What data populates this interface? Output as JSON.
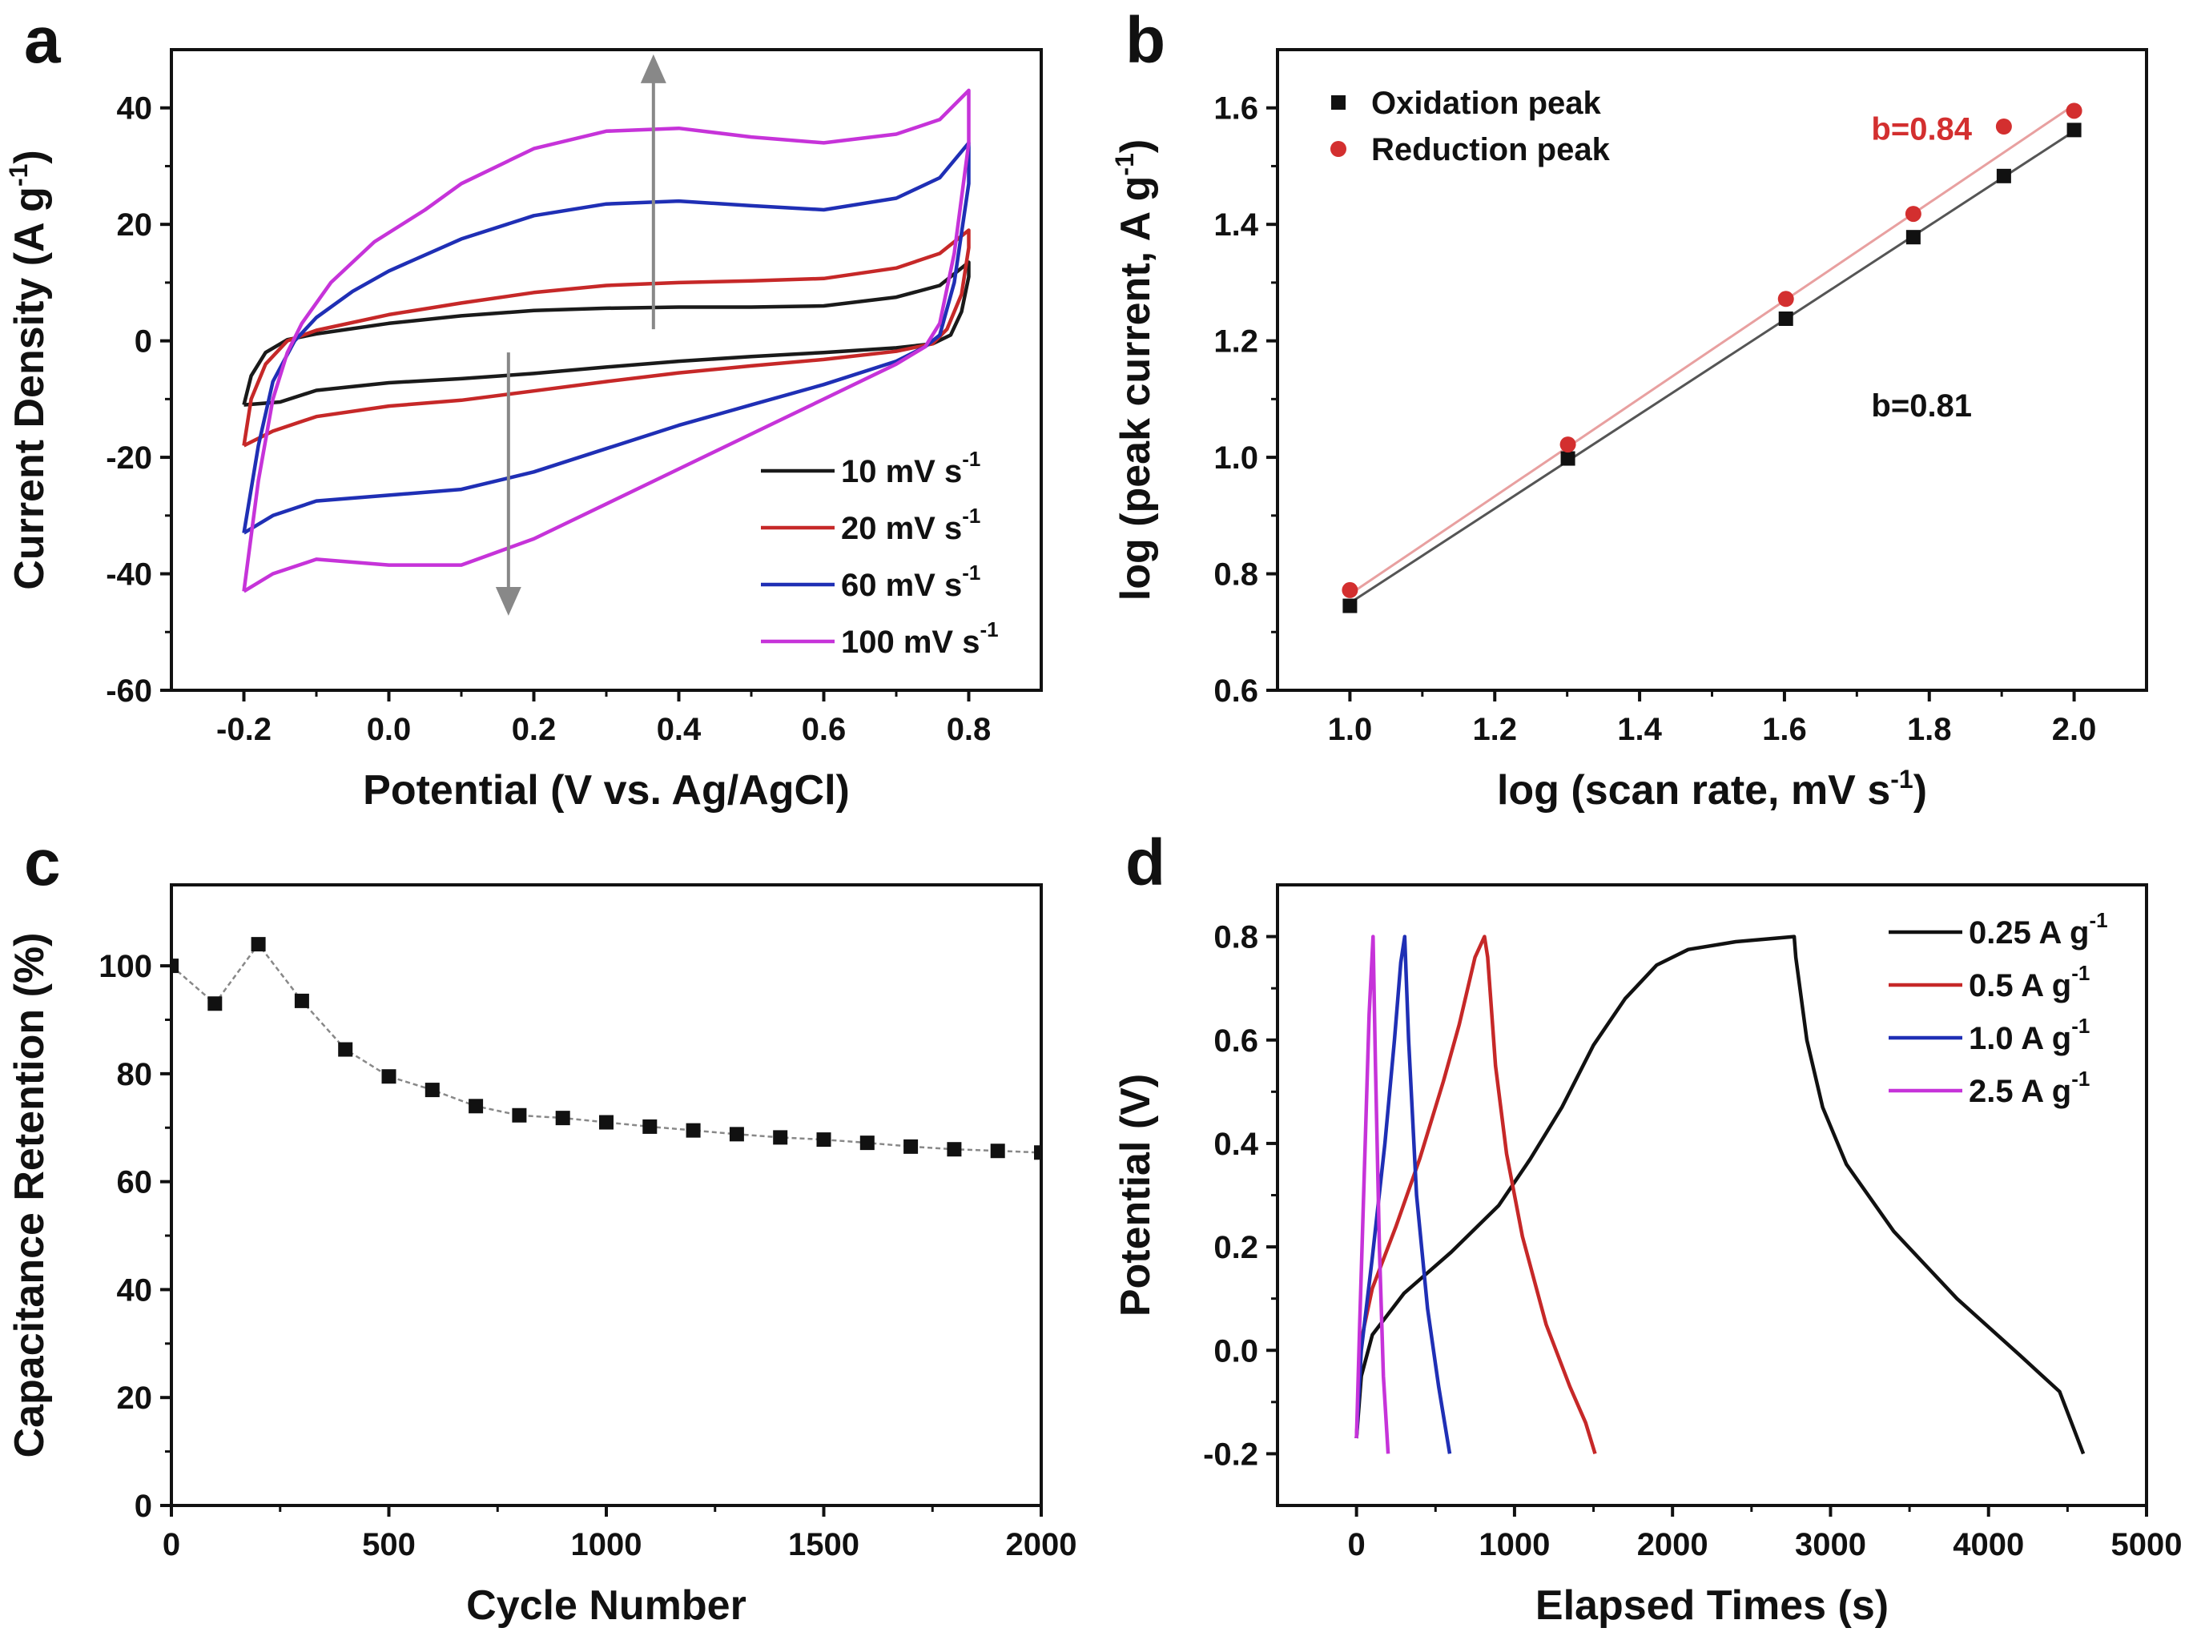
{
  "chart_data": [
    {
      "panel": "a",
      "type": "line",
      "title": "",
      "xlabel": "Potential (V vs. Ag/AgCl)",
      "ylabel": "Current Density (A g",
      "ylabel_sup": "-1",
      "ylabel_close": ")",
      "xlim": [
        -0.3,
        0.9
      ],
      "ylim": [
        -60,
        50
      ],
      "xticks": [
        -0.2,
        0.0,
        0.2,
        0.4,
        0.6,
        0.8
      ],
      "xtick_labels": [
        "-0.2",
        "0.0",
        "0.2",
        "0.4",
        "0.6",
        "0.8"
      ],
      "yticks": [
        -60,
        -40,
        -20,
        0,
        20,
        40
      ],
      "ytick_labels": [
        "-60",
        "-40",
        "-20",
        "0",
        "20",
        "40"
      ],
      "legend_position": "bottom-right",
      "arrows": [
        {
          "x": 0.365,
          "y_from": 2,
          "y_to": 47
        },
        {
          "x": 0.165,
          "y_from": -2,
          "y_to": -45
        }
      ],
      "series": [
        {
          "name": "10 mV s",
          "sup": "-1",
          "color": "#1a1a1a",
          "points": [
            [
              -0.2,
              -11
            ],
            [
              -0.19,
              -6
            ],
            [
              -0.17,
              -2
            ],
            [
              -0.14,
              0.2
            ],
            [
              -0.1,
              1.2
            ],
            [
              0.0,
              3
            ],
            [
              0.1,
              4.3
            ],
            [
              0.2,
              5.2
            ],
            [
              0.3,
              5.6
            ],
            [
              0.4,
              5.8
            ],
            [
              0.5,
              5.8
            ],
            [
              0.6,
              6
            ],
            [
              0.7,
              7.5
            ],
            [
              0.76,
              9.5
            ],
            [
              0.8,
              13.5
            ],
            [
              0.8,
              11
            ],
            [
              0.79,
              5
            ],
            [
              0.775,
              1
            ],
            [
              0.75,
              -0.5
            ],
            [
              0.7,
              -1.2
            ],
            [
              0.6,
              -2
            ],
            [
              0.5,
              -2.7
            ],
            [
              0.4,
              -3.5
            ],
            [
              0.3,
              -4.5
            ],
            [
              0.2,
              -5.6
            ],
            [
              0.1,
              -6.5
            ],
            [
              0.0,
              -7.2
            ],
            [
              -0.1,
              -8.5
            ],
            [
              -0.15,
              -10.5
            ],
            [
              -0.2,
              -11
            ]
          ]
        },
        {
          "name": "20 mV s",
          "sup": "-1",
          "color": "#c62828",
          "points": [
            [
              -0.2,
              -18
            ],
            [
              -0.19,
              -10
            ],
            [
              -0.17,
              -4
            ],
            [
              -0.14,
              0
            ],
            [
              -0.1,
              1.8
            ],
            [
              0.0,
              4.5
            ],
            [
              0.1,
              6.5
            ],
            [
              0.2,
              8.3
            ],
            [
              0.3,
              9.5
            ],
            [
              0.4,
              10
            ],
            [
              0.5,
              10.3
            ],
            [
              0.6,
              10.7
            ],
            [
              0.7,
              12.5
            ],
            [
              0.76,
              15
            ],
            [
              0.8,
              19
            ],
            [
              0.8,
              16
            ],
            [
              0.79,
              8
            ],
            [
              0.77,
              2
            ],
            [
              0.75,
              -0.5
            ],
            [
              0.7,
              -1.8
            ],
            [
              0.6,
              -3.2
            ],
            [
              0.5,
              -4.3
            ],
            [
              0.4,
              -5.5
            ],
            [
              0.3,
              -7
            ],
            [
              0.2,
              -8.6
            ],
            [
              0.1,
              -10.2
            ],
            [
              0.0,
              -11.2
            ],
            [
              -0.1,
              -13
            ],
            [
              -0.16,
              -15.5
            ],
            [
              -0.2,
              -18
            ]
          ]
        },
        {
          "name": "60 mV s",
          "sup": "-1",
          "color": "#1f2fb5",
          "points": [
            [
              -0.2,
              -33
            ],
            [
              -0.18,
              -18
            ],
            [
              -0.16,
              -7
            ],
            [
              -0.13,
              0
            ],
            [
              -0.1,
              4
            ],
            [
              -0.05,
              8.5
            ],
            [
              0.0,
              12
            ],
            [
              0.1,
              17.5
            ],
            [
              0.2,
              21.5
            ],
            [
              0.3,
              23.5
            ],
            [
              0.4,
              24
            ],
            [
              0.5,
              23.2
            ],
            [
              0.6,
              22.5
            ],
            [
              0.7,
              24.5
            ],
            [
              0.76,
              28
            ],
            [
              0.8,
              34
            ],
            [
              0.8,
              27
            ],
            [
              0.78,
              10
            ],
            [
              0.76,
              1
            ],
            [
              0.74,
              -1
            ],
            [
              0.7,
              -3.5
            ],
            [
              0.6,
              -7.5
            ],
            [
              0.5,
              -11
            ],
            [
              0.4,
              -14.5
            ],
            [
              0.3,
              -18.5
            ],
            [
              0.2,
              -22.5
            ],
            [
              0.1,
              -25.5
            ],
            [
              0.0,
              -26.5
            ],
            [
              -0.1,
              -27.5
            ],
            [
              -0.16,
              -30
            ],
            [
              -0.2,
              -33
            ]
          ]
        },
        {
          "name": "100 mV s",
          "sup": "-1",
          "color": "#c633d9",
          "points": [
            [
              -0.2,
              -43
            ],
            [
              -0.18,
              -24
            ],
            [
              -0.16,
              -10
            ],
            [
              -0.14,
              -2
            ],
            [
              -0.12,
              3
            ],
            [
              -0.08,
              10
            ],
            [
              -0.02,
              17
            ],
            [
              0.05,
              22.5
            ],
            [
              0.1,
              27
            ],
            [
              0.2,
              33
            ],
            [
              0.3,
              36
            ],
            [
              0.4,
              36.5
            ],
            [
              0.5,
              35
            ],
            [
              0.6,
              34
            ],
            [
              0.7,
              35.5
            ],
            [
              0.76,
              38
            ],
            [
              0.8,
              43
            ],
            [
              0.8,
              34
            ],
            [
              0.78,
              15
            ],
            [
              0.76,
              3
            ],
            [
              0.74,
              -1
            ],
            [
              0.7,
              -4
            ],
            [
              0.6,
              -10
            ],
            [
              0.5,
              -16
            ],
            [
              0.4,
              -22
            ],
            [
              0.3,
              -28
            ],
            [
              0.2,
              -34
            ],
            [
              0.1,
              -38.5
            ],
            [
              0.0,
              -38.5
            ],
            [
              -0.1,
              -37.5
            ],
            [
              -0.16,
              -40
            ],
            [
              -0.2,
              -43
            ]
          ]
        }
      ]
    },
    {
      "panel": "b",
      "type": "scatter",
      "title": "",
      "xlabel": "log (scan rate, mV s",
      "xlabel_sup": "-1",
      "xlabel_close": ")",
      "ylabel": "log (peak current, A g",
      "ylabel_sup": "-1",
      "ylabel_close": ")",
      "xlim": [
        0.9,
        2.1
      ],
      "ylim": [
        0.6,
        1.7
      ],
      "xticks": [
        1.0,
        1.2,
        1.4,
        1.6,
        1.8,
        2.0
      ],
      "xtick_labels": [
        "1.0",
        "1.2",
        "1.4",
        "1.6",
        "1.8",
        "2.0"
      ],
      "yticks": [
        0.6,
        0.8,
        1.0,
        1.2,
        1.4,
        1.6
      ],
      "ytick_labels": [
        "0.6",
        "0.8",
        "1.0",
        "1.2",
        "1.4",
        "1.6"
      ],
      "legend_position": "top-left",
      "series": [
        {
          "name": "Oxidation peak",
          "marker": "square",
          "color": "#111111",
          "fit_color": "#555555",
          "x": [
            1.0,
            1.301,
            1.602,
            1.778,
            1.903,
            2.0
          ],
          "y": [
            0.745,
            0.998,
            1.238,
            1.378,
            1.483,
            1.562
          ],
          "fit": {
            "slope": 0.81,
            "intercept": -0.06
          }
        },
        {
          "name": "Reduction peak",
          "marker": "circle",
          "color": "#d32f2f",
          "fit_color": "#e8a0a0",
          "x": [
            1.0,
            1.301,
            1.602,
            1.778,
            1.903,
            2.0
          ],
          "y": [
            0.772,
            1.022,
            1.272,
            1.418,
            1.568,
            1.595
          ],
          "fit": {
            "slope": 0.84,
            "intercept": -0.075
          }
        }
      ],
      "annotations": [
        {
          "text": "b=0.84",
          "color": "#d32f2f",
          "x": 1.72,
          "y": 1.545
        },
        {
          "text": "b=0.81",
          "color": "#111111",
          "x": 1.72,
          "y": 1.07
        }
      ]
    },
    {
      "panel": "c",
      "type": "line",
      "title": "",
      "xlabel": "Cycle Number",
      "ylabel": "Capacitance Retention (%)",
      "xlim": [
        0,
        2000
      ],
      "ylim": [
        0,
        115
      ],
      "xticks": [
        0,
        500,
        1000,
        1500,
        2000
      ],
      "xtick_labels": [
        "0",
        "500",
        "1000",
        "1500",
        "2000"
      ],
      "yticks": [
        0,
        20,
        40,
        60,
        80,
        100
      ],
      "ytick_labels": [
        "0",
        "20",
        "40",
        "60",
        "80",
        "100"
      ],
      "series": [
        {
          "name": "Capacitance Retention",
          "marker": "square",
          "color": "#111111",
          "x": [
            0,
            100,
            200,
            300,
            400,
            500,
            600,
            700,
            800,
            900,
            1000,
            1100,
            1200,
            1300,
            1400,
            1500,
            1600,
            1700,
            1800,
            1900,
            2000
          ],
          "y": [
            100,
            93,
            104,
            93.5,
            84.5,
            79.5,
            77,
            74,
            72.3,
            71.8,
            71,
            70.2,
            69.5,
            68.8,
            68.2,
            67.8,
            67.2,
            66.5,
            66,
            65.7,
            65.4
          ]
        }
      ]
    },
    {
      "panel": "d",
      "type": "line",
      "title": "",
      "xlabel": "Elapsed Times (s)",
      "ylabel": "Potential (V)",
      "xlim": [
        -500,
        5000
      ],
      "ylim": [
        -0.3,
        0.9
      ],
      "xticks": [
        0,
        1000,
        2000,
        3000,
        4000,
        5000
      ],
      "xtick_labels": [
        "0",
        "1000",
        "2000",
        "3000",
        "4000",
        "5000"
      ],
      "yticks": [
        -0.2,
        0.0,
        0.2,
        0.4,
        0.6,
        0.8
      ],
      "ytick_labels": [
        "-0.2",
        "0.0",
        "0.2",
        "0.4",
        "0.6",
        "0.8"
      ],
      "legend_position": "top-right",
      "series": [
        {
          "name": "0.25 A g",
          "sup": "-1",
          "color": "#111111",
          "points": [
            [
              0,
              -0.17
            ],
            [
              30,
              -0.05
            ],
            [
              100,
              0.03
            ],
            [
              300,
              0.11
            ],
            [
              600,
              0.19
            ],
            [
              900,
              0.28
            ],
            [
              1100,
              0.37
            ],
            [
              1300,
              0.47
            ],
            [
              1500,
              0.59
            ],
            [
              1700,
              0.68
            ],
            [
              1900,
              0.745
            ],
            [
              2100,
              0.775
            ],
            [
              2400,
              0.79
            ],
            [
              2770,
              0.8
            ],
            [
              2780,
              0.76
            ],
            [
              2850,
              0.6
            ],
            [
              2950,
              0.47
            ],
            [
              3100,
              0.36
            ],
            [
              3400,
              0.23
            ],
            [
              3800,
              0.1
            ],
            [
              4200,
              -0.01
            ],
            [
              4450,
              -0.08
            ],
            [
              4600,
              -0.2
            ]
          ]
        },
        {
          "name": "0.5 A g",
          "sup": "-1",
          "color": "#c62828",
          "points": [
            [
              0,
              -0.17
            ],
            [
              30,
              0.02
            ],
            [
              100,
              0.12
            ],
            [
              250,
              0.24
            ],
            [
              400,
              0.37
            ],
            [
              550,
              0.52
            ],
            [
              650,
              0.63
            ],
            [
              750,
              0.76
            ],
            [
              810,
              0.8
            ],
            [
              830,
              0.76
            ],
            [
              880,
              0.55
            ],
            [
              950,
              0.38
            ],
            [
              1050,
              0.22
            ],
            [
              1200,
              0.05
            ],
            [
              1350,
              -0.07
            ],
            [
              1450,
              -0.14
            ],
            [
              1510,
              -0.2
            ]
          ]
        },
        {
          "name": "1.0 A g",
          "sup": "-1",
          "color": "#1f2fb5",
          "points": [
            [
              0,
              -0.17
            ],
            [
              30,
              0
            ],
            [
              100,
              0.18
            ],
            [
              180,
              0.4
            ],
            [
              240,
              0.6
            ],
            [
              280,
              0.75
            ],
            [
              305,
              0.8
            ],
            [
              330,
              0.6
            ],
            [
              380,
              0.3
            ],
            [
              450,
              0.08
            ],
            [
              520,
              -0.07
            ],
            [
              590,
              -0.2
            ]
          ]
        },
        {
          "name": "2.5 A g",
          "sup": "-1",
          "color": "#c633d9",
          "points": [
            [
              0,
              -0.17
            ],
            [
              20,
              0.05
            ],
            [
              50,
              0.35
            ],
            [
              80,
              0.65
            ],
            [
              105,
              0.8
            ],
            [
              120,
              0.55
            ],
            [
              145,
              0.2
            ],
            [
              170,
              -0.05
            ],
            [
              200,
              -0.2
            ]
          ]
        }
      ]
    }
  ]
}
